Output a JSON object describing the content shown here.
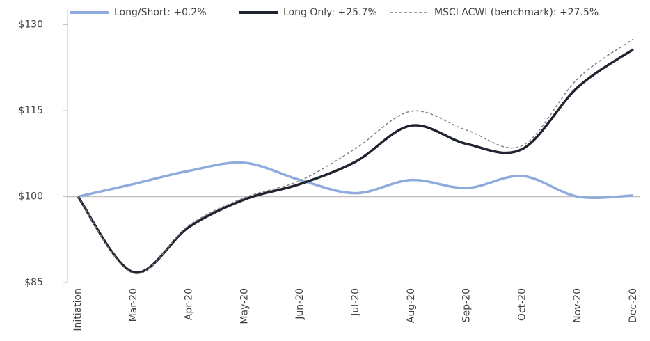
{
  "chart_data": {
    "type": "line",
    "categories": [
      "Initiation",
      "Mar-20",
      "Apr-20",
      "May-20",
      "Jun-20",
      "Jul-20",
      "Aug-20",
      "Sep-20",
      "Oct-20",
      "Nov-20",
      "Dec-20"
    ],
    "series": [
      {
        "name": "Long/Short: +0.2%",
        "color": "#8faadc",
        "dashed": false,
        "values": [
          100,
          102.2,
          104.5,
          105.9,
          102.9,
          100.6,
          102.9,
          101.5,
          103.6,
          100,
          100.2
        ]
      },
      {
        "name": "Long Only: +25.7%",
        "color": "#1f2430",
        "dashed": false,
        "values": [
          100,
          86.8,
          94.7,
          99.5,
          102.2,
          106.1,
          112.4,
          109.2,
          108.3,
          119.1,
          125.7
        ]
      },
      {
        "name": "MSCI ACWI (benchmark): +27.5%",
        "color": "#7f7f7f",
        "dashed": true,
        "values": [
          100,
          86.6,
          95,
          99.8,
          102.8,
          108.4,
          114.9,
          111.6,
          108.9,
          120.6,
          127.5
        ]
      }
    ],
    "ylim": [
      85,
      132.5
    ],
    "yticks": [
      {
        "value": 85,
        "label": "$85"
      },
      {
        "value": 100,
        "label": "$100"
      },
      {
        "value": 115,
        "label": "$115"
      },
      {
        "value": 130,
        "label": "$130"
      }
    ],
    "xaxis_crosses": 100,
    "grid": false,
    "legend": "top"
  }
}
